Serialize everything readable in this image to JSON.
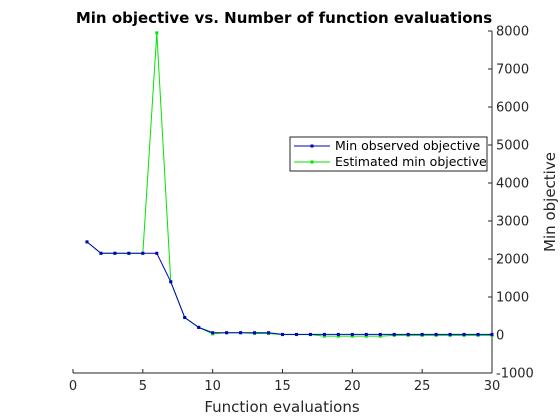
{
  "chart_data": {
    "type": "line",
    "title": "Min objective vs. Number of function evaluations",
    "xlabel": "Function evaluations",
    "ylabel": "Min objective",
    "xlim": [
      0,
      30
    ],
    "ylim": [
      -1000,
      8000
    ],
    "xticks": [
      0,
      5,
      10,
      15,
      20,
      25,
      30
    ],
    "yticks": [
      -1000,
      0,
      1000,
      2000,
      3000,
      4000,
      5000,
      6000,
      7000,
      8000
    ],
    "y_axis_side": "right",
    "grid": false,
    "legend_position": "right",
    "x": [
      1,
      2,
      3,
      4,
      5,
      6,
      7,
      8,
      9,
      10,
      11,
      12,
      13,
      14,
      15,
      16,
      17,
      18,
      19,
      20,
      21,
      22,
      23,
      24,
      25,
      26,
      27,
      28,
      29,
      30
    ],
    "series": [
      {
        "name": "Min observed objective",
        "color": "#0000bf",
        "values": [
          2450,
          2150,
          2150,
          2150,
          2150,
          2150,
          1400,
          460,
          200,
          60,
          60,
          60,
          60,
          60,
          15,
          15,
          15,
          15,
          15,
          15,
          15,
          15,
          15,
          15,
          15,
          15,
          15,
          15,
          15,
          15
        ]
      },
      {
        "name": "Estimated min objective",
        "color": "#00e600",
        "values": [
          2450,
          2150,
          2150,
          2150,
          2150,
          7950,
          1400,
          460,
          200,
          30,
          60,
          60,
          40,
          40,
          10,
          10,
          10,
          -30,
          -30,
          -30,
          -30,
          -30,
          -10,
          -10,
          -10,
          -10,
          -10,
          -10,
          -10,
          -10
        ]
      }
    ]
  }
}
